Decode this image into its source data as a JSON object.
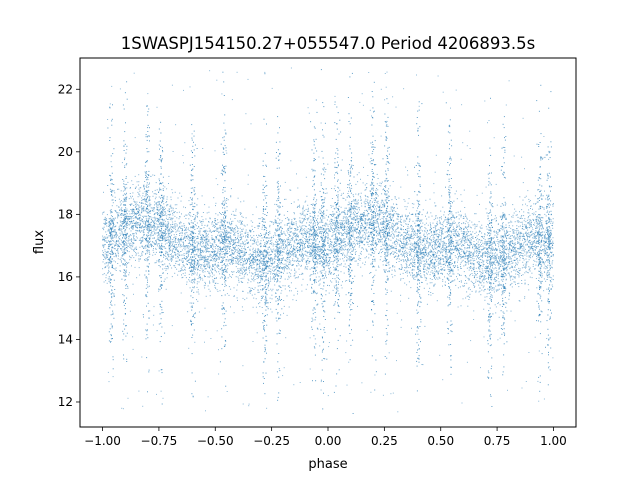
{
  "chart_data": {
    "type": "scatter",
    "title": "1SWASPJ154150.27+055547.0 Period 4206893.5s",
    "xlabel": "phase",
    "ylabel": "flux",
    "xlim": [
      -1.1,
      1.1
    ],
    "ylim": [
      11.2,
      23.0
    ],
    "xticks": [
      -1.0,
      -0.75,
      -0.5,
      -0.25,
      0.0,
      0.25,
      0.5,
      0.75,
      1.0
    ],
    "xtick_labels": [
      "−1.00",
      "−0.75",
      "−0.50",
      "−0.25",
      "0.00",
      "0.25",
      "0.50",
      "0.75",
      "1.00"
    ],
    "yticks": [
      12,
      14,
      16,
      18,
      20,
      22
    ],
    "ytick_labels": [
      "12",
      "14",
      "16",
      "18",
      "20",
      "22"
    ],
    "grid": false,
    "legend": "none",
    "marker_color": "#1f77b4",
    "phase_range": [
      -1.0,
      1.0
    ],
    "flux_range": [
      11.6,
      22.7
    ],
    "mean_flux_profile": {
      "phase": [
        0.0,
        0.05,
        0.1,
        0.15,
        0.2,
        0.25,
        0.3,
        0.35,
        0.4,
        0.45,
        0.5,
        0.55,
        0.6,
        0.65,
        0.7,
        0.75,
        0.8,
        0.85,
        0.9,
        0.95,
        1.0
      ],
      "flux": [
        17.0,
        17.3,
        17.5,
        17.7,
        17.8,
        17.6,
        17.3,
        17.0,
        16.9,
        16.8,
        16.9,
        17.0,
        16.9,
        16.6,
        16.5,
        16.6,
        16.8,
        17.0,
        17.2,
        17.1,
        17.0
      ]
    },
    "scatter_spread": 0.8,
    "vertical_spike_phases": [
      0.04,
      0.1,
      0.2,
      0.26,
      0.4,
      0.54,
      0.72,
      0.78,
      0.94,
      0.98
    ]
  }
}
